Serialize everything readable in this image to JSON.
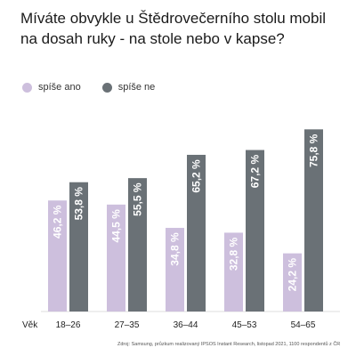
{
  "title": "Míváte obvykle u Štědrovečerního stolu mobil na dosah ruky - na stole nebo v kapse?",
  "source": "Zdroj: Samsung, průzkum realizovaný IPSOS Instant Research, listopad 2021, 1100 respondentů z ČR",
  "colors": {
    "ano": "#cdbfdd",
    "ne": "#6a7176",
    "label_ano": "#ffffff",
    "label_ne": "#ffffff"
  },
  "chart_data": {
    "type": "bar",
    "title": "Míváte obvykle u Štědrovečerního stolu mobil na dosah ruky - na stole nebo v kapse?",
    "xlabel": "Věk",
    "ylabel": "",
    "categories": [
      "18–26",
      "27–35",
      "36–44",
      "45–53",
      "54–65"
    ],
    "series": [
      {
        "name": "spíše ano",
        "values": [
          46.2,
          44.5,
          34.8,
          32.8,
          24.2
        ],
        "labels": [
          "46,2 %",
          "44,5 %",
          "34,8 %",
          "32,8 %",
          "24,2 %"
        ]
      },
      {
        "name": "spíše ne",
        "values": [
          53.8,
          55.5,
          65.2,
          67.2,
          75.8
        ],
        "labels": [
          "53,8 %",
          "55,5 %",
          "65,2 %",
          "67,2 %",
          "75,8 %"
        ]
      }
    ],
    "ylim": [
      0,
      100
    ],
    "grid": false,
    "legend": "top-left"
  }
}
